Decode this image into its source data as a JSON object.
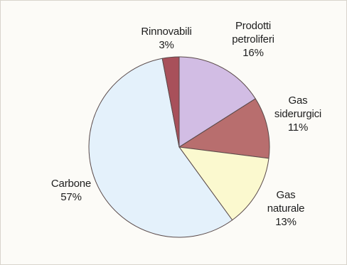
{
  "chart_data": {
    "type": "pie",
    "title": "",
    "start_angle_deg": -90,
    "direction": "clockwise",
    "slices": [
      {
        "label_lines": [
          "Prodotti",
          "petroliferi"
        ],
        "value": 16,
        "value_label": "16%",
        "color": "#d2bde4"
      },
      {
        "label_lines": [
          "Gas",
          "siderurgici"
        ],
        "value": 11,
        "value_label": "11%",
        "color": "#b86e6e"
      },
      {
        "label_lines": [
          "Gas",
          "naturale"
        ],
        "value": 13,
        "value_label": "13%",
        "color": "#fbf9cf"
      },
      {
        "label_lines": [
          "Carbone"
        ],
        "value": 57,
        "value_label": "57%",
        "color": "#e4f1fb"
      },
      {
        "label_lines": [
          "Rinnovabili"
        ],
        "value": 3,
        "value_label": "3%",
        "color": "#a8505a"
      }
    ]
  }
}
